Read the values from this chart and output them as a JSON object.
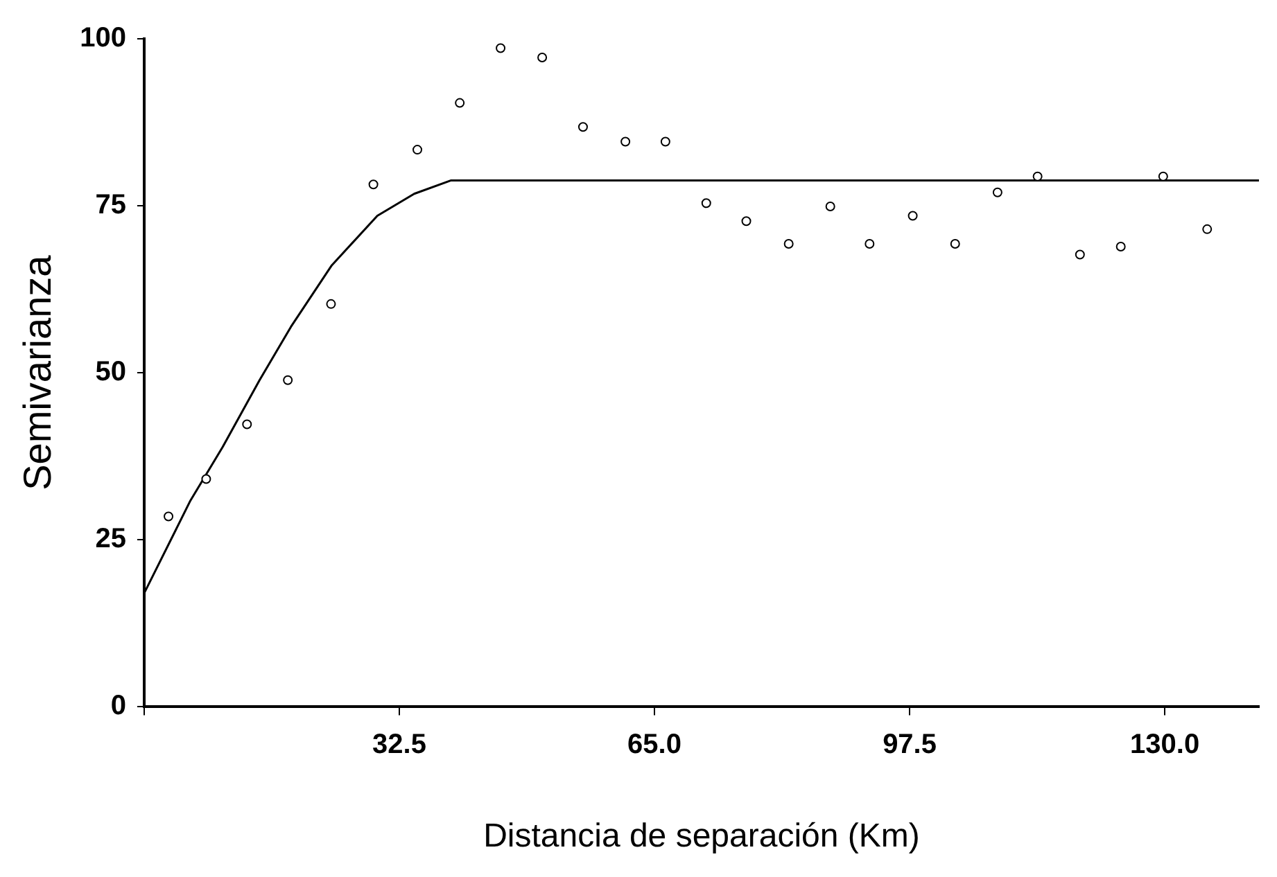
{
  "chart_data": {
    "type": "scatter",
    "xlabel": "Distancia de separación (Km)",
    "ylabel": "Semivarianza",
    "xlim": [
      0,
      142
    ],
    "xticks": [
      {
        "value": 0,
        "label": null
      },
      {
        "value": 32.5,
        "label": "32.5"
      },
      {
        "value": 65,
        "label": "65.0"
      },
      {
        "value": 97.5,
        "label": "97.5"
      },
      {
        "value": 130,
        "label": "130.0"
      }
    ],
    "ylim": [
      0,
      100
    ],
    "yticks": [
      0,
      25,
      50,
      75,
      100
    ],
    "grid": false,
    "legend": false,
    "series": [
      {
        "type": "scatter",
        "color": "#000000",
        "marker": "circle",
        "x": [
          3.1,
          7.9,
          13.1,
          18.3,
          23.8,
          29.2,
          34.8,
          40.2,
          45.4,
          50.7,
          55.9,
          61.3,
          66.4,
          71.6,
          76.7,
          82.1,
          87.4,
          92.4,
          97.9,
          103.3,
          108.7,
          113.8,
          119.2,
          124.4,
          129.8,
          135.4
        ],
        "values": [
          28.5,
          34.1,
          42.3,
          48.9,
          60.3,
          78.2,
          83.4,
          90.4,
          98.6,
          97.2,
          86.8,
          84.6,
          84.6,
          75.4,
          72.7,
          69.3,
          74.9,
          69.3,
          73.5,
          69.3,
          77.0,
          79.4,
          67.7,
          68.9,
          79.4,
          71.5
        ]
      },
      {
        "type": "line",
        "color": "#000000",
        "marker": "none",
        "line_style": "solid",
        "x": [
          0,
          5.9,
          10,
          14.7,
          18.7,
          23.9,
          29.7,
          34.4,
          39.1,
          142
        ],
        "values": [
          17.0,
          30.9,
          38.9,
          48.9,
          56.9,
          66.1,
          73.5,
          76.8,
          78.8,
          78.8
        ]
      }
    ]
  }
}
